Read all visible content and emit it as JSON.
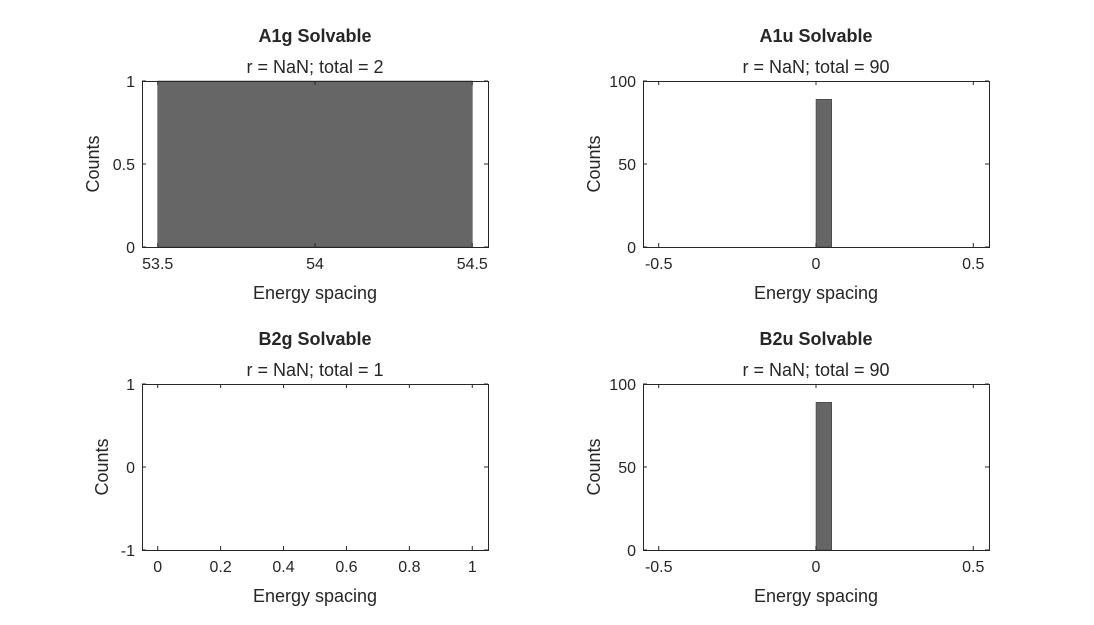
{
  "figure": {
    "background": "#ffffff",
    "bar_color": "#666666",
    "axis_color": "#262626"
  },
  "chart_data": [
    {
      "type": "bar",
      "title": "A1g Solvable",
      "subtitle": "r = NaN; total = 2",
      "xlabel": "Energy spacing",
      "ylabel": "Counts",
      "xlim": [
        53.45,
        54.55
      ],
      "ylim": [
        0,
        1
      ],
      "xticks": [
        "53.5",
        "54",
        "54.5"
      ],
      "xtick_values": [
        53.5,
        54,
        54.5
      ],
      "yticks": [
        "0",
        "0.5",
        "1"
      ],
      "ytick_values": [
        0,
        0.5,
        1
      ],
      "bars": [
        {
          "x0": 53.5,
          "x1": 54.5,
          "value": 1
        }
      ],
      "grid": false
    },
    {
      "type": "bar",
      "title": "A1u Solvable",
      "subtitle": "r = NaN; total = 90",
      "xlabel": "Energy spacing",
      "ylabel": "Counts",
      "xlim": [
        -0.55,
        0.55
      ],
      "ylim": [
        0,
        100
      ],
      "xticks": [
        "-0.5",
        "0",
        "0.5"
      ],
      "xtick_values": [
        -0.5,
        0,
        0.5
      ],
      "yticks": [
        "0",
        "50",
        "100"
      ],
      "ytick_values": [
        0,
        50,
        100
      ],
      "bars": [
        {
          "x0": 0,
          "x1": 0.05,
          "value": 89
        }
      ],
      "grid": false
    },
    {
      "type": "bar",
      "title": "B2g Solvable",
      "subtitle": "r = NaN; total = 1",
      "xlabel": "Energy spacing",
      "ylabel": "Counts",
      "xlim": [
        -0.05,
        1.05
      ],
      "ylim": [
        -1,
        1
      ],
      "xticks": [
        "0",
        "0.2",
        "0.4",
        "0.6",
        "0.8",
        "1"
      ],
      "xtick_values": [
        0,
        0.2,
        0.4,
        0.6,
        0.8,
        1
      ],
      "yticks": [
        "-1",
        "0",
        "1"
      ],
      "ytick_values": [
        -1,
        0,
        1
      ],
      "bars": [],
      "grid": false
    },
    {
      "type": "bar",
      "title": "B2u Solvable",
      "subtitle": "r = NaN; total = 90",
      "xlabel": "Energy spacing",
      "ylabel": "Counts",
      "xlim": [
        -0.55,
        0.55
      ],
      "ylim": [
        0,
        100
      ],
      "xticks": [
        "-0.5",
        "0",
        "0.5"
      ],
      "xtick_values": [
        -0.5,
        0,
        0.5
      ],
      "yticks": [
        "0",
        "50",
        "100"
      ],
      "ytick_values": [
        0,
        50,
        100
      ],
      "bars": [
        {
          "x0": 0,
          "x1": 0.05,
          "value": 89
        }
      ],
      "grid": false
    }
  ]
}
